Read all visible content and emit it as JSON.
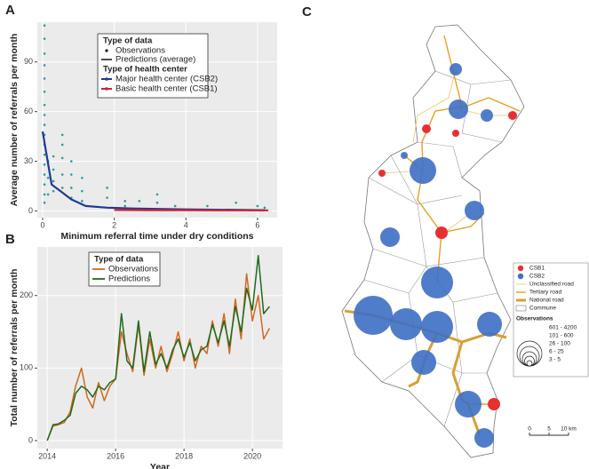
{
  "panels": [
    "A",
    "B",
    "C"
  ],
  "chart_data": [
    {
      "type": "line",
      "xlabel": "Minimum referral time under dry conditions",
      "ylabel": "Average number of referrals per month",
      "xlim": [
        -0.15,
        6.55
      ],
      "ylim": [
        -4,
        114
      ],
      "xticks": [
        0,
        2,
        4,
        6
      ],
      "yticks": [
        0,
        30,
        60,
        90
      ],
      "grid": true,
      "legend_labels": {
        "data_title": "Type of data",
        "predictions": "Predictions (average)",
        "center_title": "Type of health center"
      },
      "series": [
        {
          "name": "Observations",
          "kind": "scatter",
          "color": "#2a9d9d",
          "x": [
            0.05,
            0.05,
            0.05,
            0.05,
            0.05,
            0.05,
            0.05,
            0.05,
            0.05,
            0.05,
            0.05,
            0.05,
            0.05,
            0.05,
            0.05,
            0.05,
            0.05,
            0.15,
            0.15,
            0.15,
            0.3,
            0.3,
            0.3,
            0.3,
            0.55,
            0.55,
            0.55,
            0.55,
            0.55,
            0.8,
            0.8,
            0.8,
            0.8,
            1.1,
            1.1,
            1.1,
            1.8,
            1.8,
            2.3,
            2.3,
            2.7,
            3.2,
            3.2,
            3.7,
            4.6,
            5.4,
            6.0,
            6.2
          ],
          "values": [
            112,
            104,
            95,
            88,
            80,
            72,
            64,
            58,
            52,
            46,
            40,
            34,
            28,
            22,
            16,
            10,
            5,
            30,
            20,
            10,
            33,
            25,
            18,
            12,
            46,
            40,
            32,
            22,
            14,
            30,
            22,
            14,
            8,
            20,
            12,
            6,
            14,
            8,
            6,
            3,
            6,
            10,
            5,
            3,
            3,
            5,
            3,
            2
          ]
        },
        {
          "name": "Major health center (CSB2)",
          "kind": "line",
          "color": "#1f3a93",
          "x": [
            0,
            0.1,
            0.25,
            0.5,
            0.8,
            1.2,
            1.8,
            2.5,
            4,
            6.2
          ],
          "values": [
            48,
            35,
            16,
            12,
            7,
            3,
            2,
            1.5,
            1,
            0.5
          ]
        },
        {
          "name": "Basic health center (CSB1)",
          "kind": "line",
          "color": "#cc2233",
          "x": [
            2,
            3,
            4,
            5,
            6.3
          ],
          "values": [
            0.6,
            0.5,
            0.5,
            0.4,
            0.4
          ]
        }
      ]
    },
    {
      "type": "line",
      "xlabel": "Year",
      "ylabel": "Total number of referrals per month",
      "legend_title": "Type of data",
      "xlim": [
        2013.71,
        2020.88
      ],
      "ylim": [
        -11,
        267
      ],
      "xticks": [
        2014,
        2016,
        2018,
        2020
      ],
      "yticks": [
        0,
        100,
        200
      ],
      "grid": true,
      "x": [
        2014,
        2014.17,
        2014.33,
        2014.5,
        2014.67,
        2014.83,
        2015,
        2015.17,
        2015.33,
        2015.5,
        2015.67,
        2015.83,
        2016,
        2016.17,
        2016.33,
        2016.5,
        2016.67,
        2016.83,
        2017,
        2017.17,
        2017.33,
        2017.5,
        2017.67,
        2017.83,
        2018,
        2018.17,
        2018.33,
        2018.5,
        2018.67,
        2018.83,
        2019,
        2019.17,
        2019.33,
        2019.5,
        2019.67,
        2019.83,
        2020,
        2020.17,
        2020.33,
        2020.5
      ],
      "series": [
        {
          "name": "Observations",
          "color": "#d2691e",
          "values": [
            0,
            20,
            22,
            25,
            40,
            75,
            100,
            60,
            45,
            80,
            55,
            75,
            85,
            150,
            120,
            95,
            160,
            90,
            140,
            100,
            130,
            95,
            120,
            150,
            110,
            140,
            100,
            130,
            120,
            165,
            130,
            175,
            120,
            195,
            140,
            230,
            165,
            200,
            140,
            155
          ]
        },
        {
          "name": "Predictions",
          "color": "#1e6b1e",
          "values": [
            0,
            22,
            23,
            28,
            35,
            65,
            75,
            70,
            60,
            75,
            70,
            80,
            85,
            175,
            110,
            100,
            165,
            95,
            150,
            105,
            120,
            100,
            125,
            140,
            115,
            135,
            110,
            125,
            130,
            160,
            135,
            165,
            130,
            185,
            150,
            210,
            180,
            255,
            175,
            185
          ]
        }
      ]
    }
  ],
  "map": {
    "legend": [
      "CSB1",
      "CSB2",
      "Unclassified road",
      "Tertiary road",
      "National road",
      "Commune"
    ],
    "size_title": "Observations",
    "sizes": [
      "601 - 4200",
      "101 - 600",
      "26 - 100",
      "6 - 25",
      "3 - 5"
    ],
    "scale": [
      "0",
      "5",
      "10 km"
    ]
  }
}
